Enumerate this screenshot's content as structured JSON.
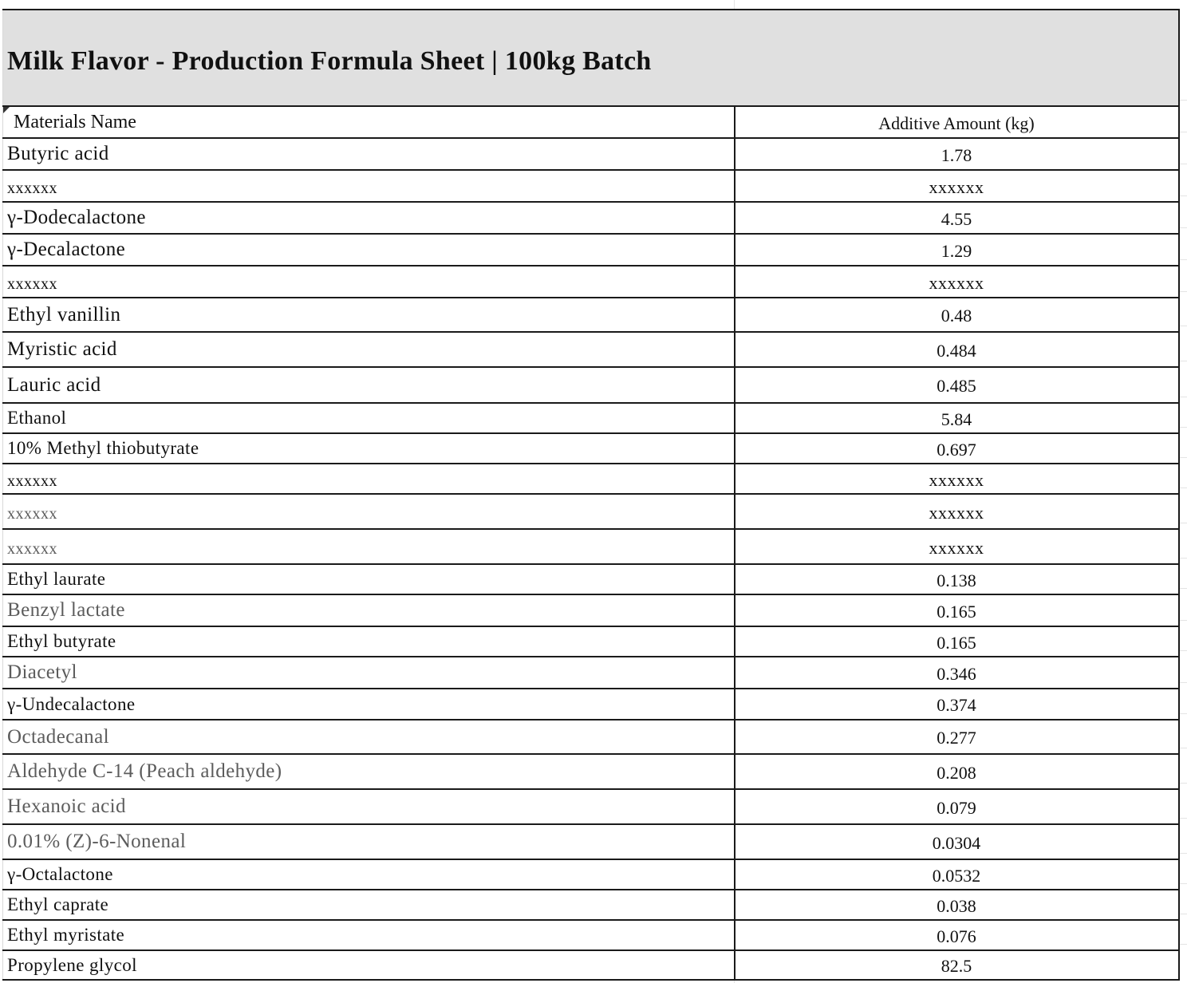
{
  "sheet": {
    "title": "Milk Flavor - Production Formula Sheet | 100kg Batch",
    "columns": {
      "name": "Materials Name",
      "amount": "Additive Amount (kg)"
    },
    "rows": [
      {
        "name": "Butyric acid",
        "amount": "1.78"
      },
      {
        "name": "xxxxxx",
        "amount": "xxxxxx"
      },
      {
        "name": "γ-Dodecalactone",
        "amount": "4.55"
      },
      {
        "name": "γ-Decalactone",
        "amount": "1.29"
      },
      {
        "name": "xxxxxx",
        "amount": "xxxxxx"
      },
      {
        "name": "Ethyl vanillin",
        "amount": "0.48"
      },
      {
        "name": "Myristic acid",
        "amount": "0.484"
      },
      {
        "name": "Lauric acid",
        "amount": "0.485"
      },
      {
        "name": "Ethanol",
        "amount": "5.84"
      },
      {
        "name": "10% Methyl thiobutyrate",
        "amount": "0.697"
      },
      {
        "name": "xxxxxx",
        "amount": "xxxxxx"
      },
      {
        "name": "xxxxxx",
        "amount": "xxxxxx"
      },
      {
        "name": "xxxxxx",
        "amount": "xxxxxx"
      },
      {
        "name": "Ethyl laurate",
        "amount": "0.138"
      },
      {
        "name": "Benzyl lactate",
        "amount": "0.165"
      },
      {
        "name": "Ethyl butyrate",
        "amount": "0.165"
      },
      {
        "name": "Diacetyl",
        "amount": "0.346"
      },
      {
        "name": "γ-Undecalactone",
        "amount": "0.374"
      },
      {
        "name": "Octadecanal",
        "amount": "0.277"
      },
      {
        "name": "Aldehyde C-14 (Peach aldehyde)",
        "amount": "0.208"
      },
      {
        "name": "Hexanoic acid",
        "amount": "0.079"
      },
      {
        "name": "0.01% (Z)-6-Nonenal",
        "amount": "0.0304"
      },
      {
        "name": "γ-Octalactone",
        "amount": "0.0532"
      },
      {
        "name": "Ethyl caprate",
        "amount": "0.038"
      },
      {
        "name": "Ethyl myristate",
        "amount": "0.076"
      },
      {
        "name": "Propylene glycol",
        "amount": "82.5"
      }
    ]
  }
}
